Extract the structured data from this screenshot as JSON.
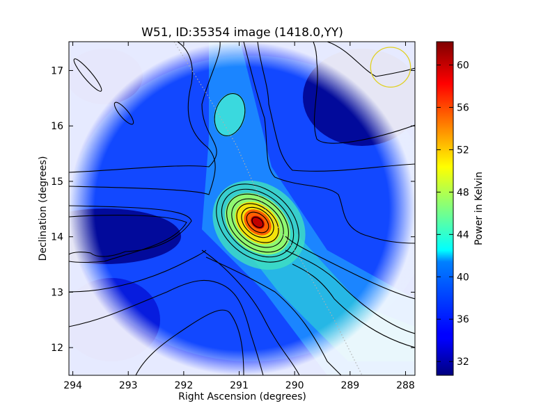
{
  "chart_data": {
    "type": "heatmap",
    "title": "W51, ID:35354 image (1418.0,YY)",
    "xlabel": "Right Ascension (degrees)",
    "ylabel": "Declination (degrees)",
    "colorbar_label": "Power in Kelvin",
    "xlim": [
      294.07,
      287.83
    ],
    "ylim": [
      11.5,
      17.52
    ],
    "x_ticks": [
      294,
      293,
      292,
      291,
      290,
      289,
      288
    ],
    "y_ticks": [
      12,
      13,
      14,
      15,
      16,
      17
    ],
    "colorbar_range": [
      30.7,
      62.2
    ],
    "colorbar_ticks": [
      32,
      36,
      40,
      44,
      48,
      52,
      56,
      60
    ],
    "colormap": "jet",
    "grid": false,
    "sources": [
      {
        "ra": 290.7,
        "dec": 14.22,
        "peak": 62.0,
        "description": "main peak"
      },
      {
        "ra": 291.12,
        "dec": 16.18,
        "peak": 45.0,
        "description": "secondary knot"
      }
    ],
    "background_level": 36.5,
    "minima": [
      {
        "ra": 293.5,
        "dec": 13.95,
        "value": 31.5
      },
      {
        "ra": 288.6,
        "dec": 16.6,
        "value": 31.0
      }
    ],
    "beam": {
      "ra": 288.27,
      "dec": 17.06,
      "radius_deg": 0.36,
      "color": "#e0d020"
    },
    "contour_color": "#000000",
    "galactic_plane_line": "dotted"
  }
}
